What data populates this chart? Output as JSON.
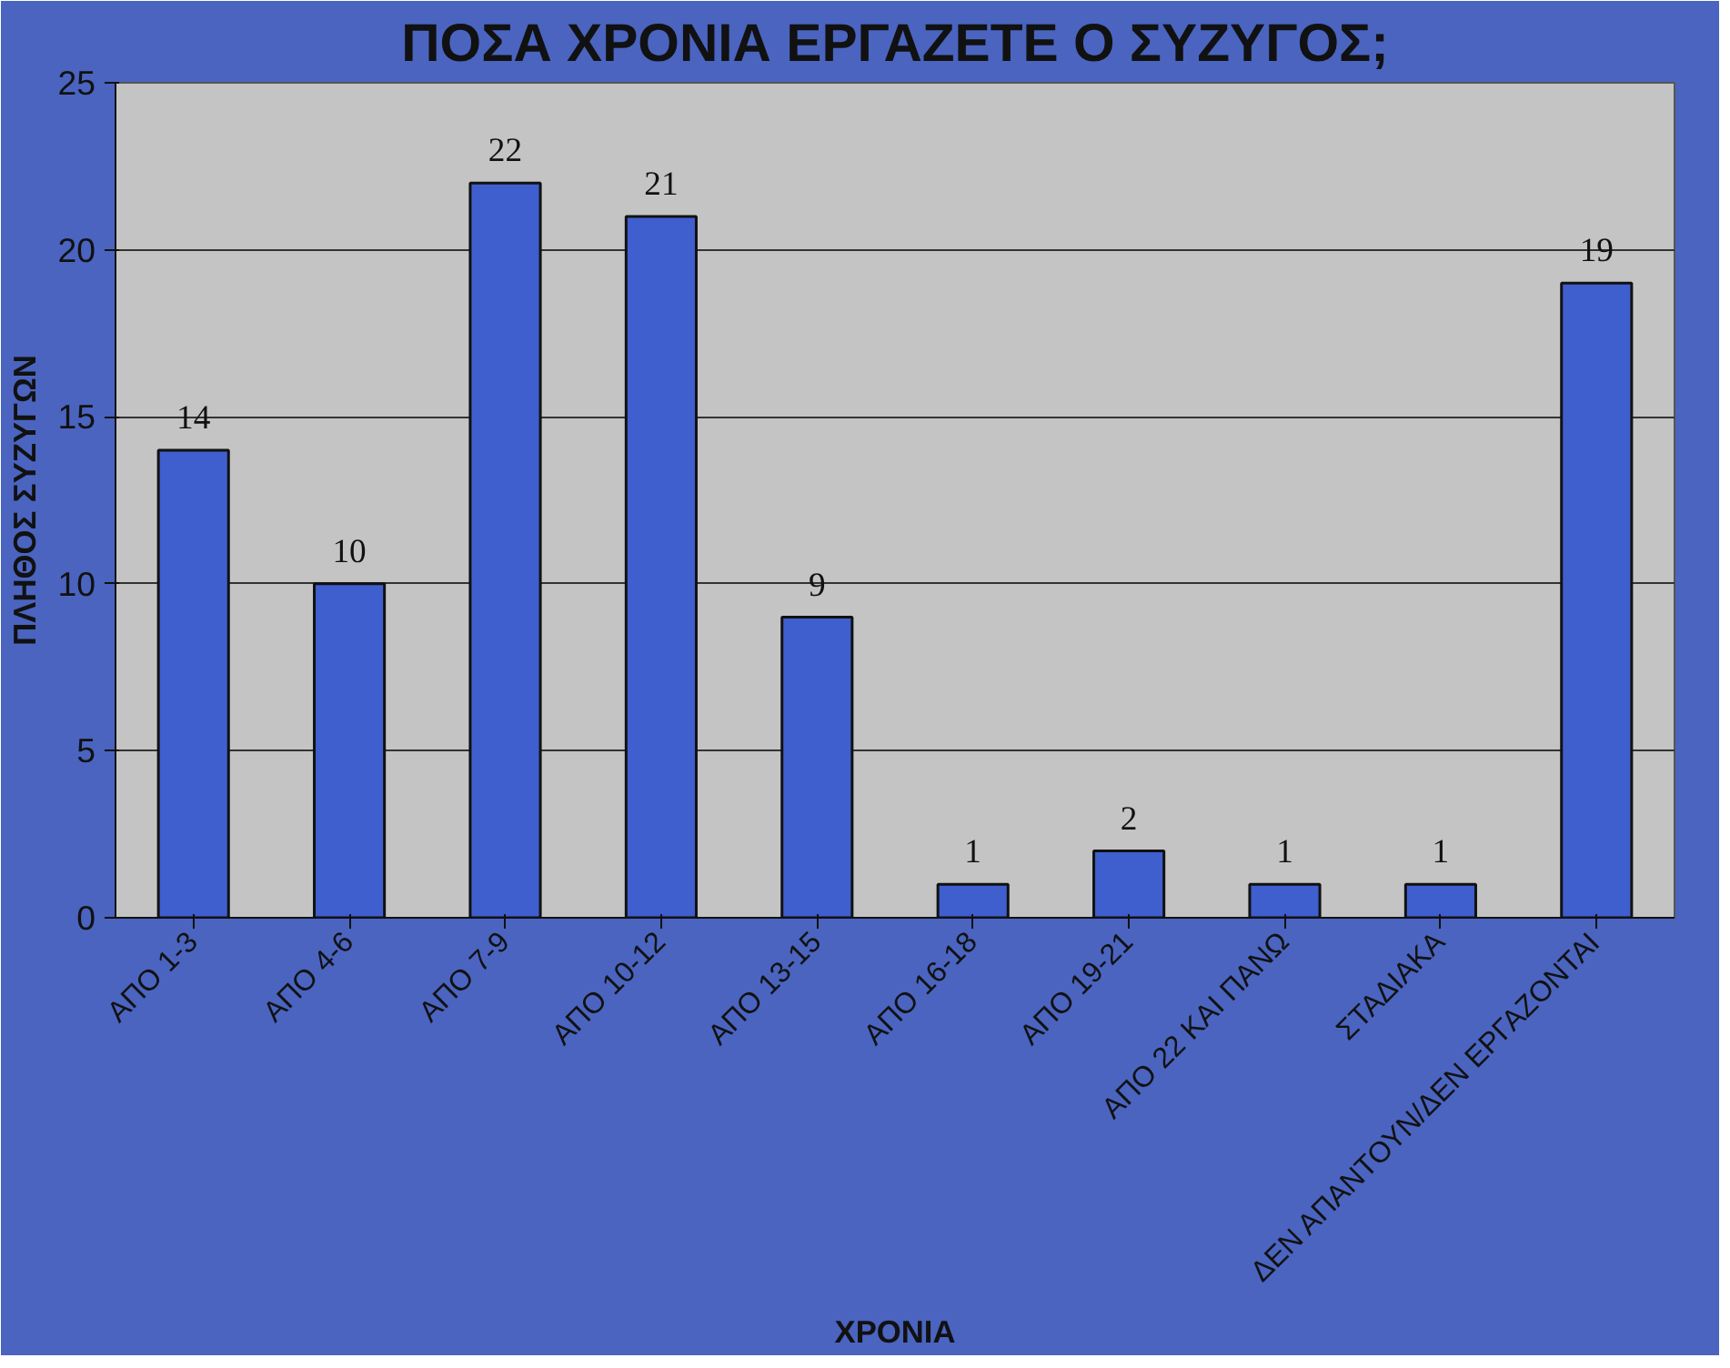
{
  "chart_data": {
    "type": "bar",
    "title": "ΠΟΣΑ ΧΡΟΝΙΑ ΕΡΓΑΖΕΤΕ Ο ΣΥΖΥΓΟΣ;",
    "xlabel": "ΧΡΟΝΙΑ",
    "ylabel": "ΠΛΗΘΟΣ ΣΥΖΥΓΩΝ",
    "categories": [
      "ΑΠΟ 1-3",
      "ΑΠΟ 4-6",
      "ΑΠΟ 7-9",
      "ΑΠΟ 10-12",
      "ΑΠΟ 13-15",
      "ΑΠΟ 16-18",
      "ΑΠΟ 19-21",
      "ΑΠΟ 22 ΚΑΙ ΠΑΝΩ",
      "ΣΤΑΔΙΑΚΑ",
      "ΔΕΝ ΑΠΑΝΤΟΥΝ/ΔΕΝ ΕΡΓΑΖΟΝΤΑΙ"
    ],
    "values": [
      14,
      10,
      22,
      21,
      9,
      1,
      2,
      1,
      1,
      19
    ],
    "color": "#3f5fcf",
    "ylim": [
      0,
      25
    ],
    "yticks": [
      0,
      5,
      10,
      15,
      20,
      25
    ],
    "grid": "y",
    "data_labels": true
  }
}
